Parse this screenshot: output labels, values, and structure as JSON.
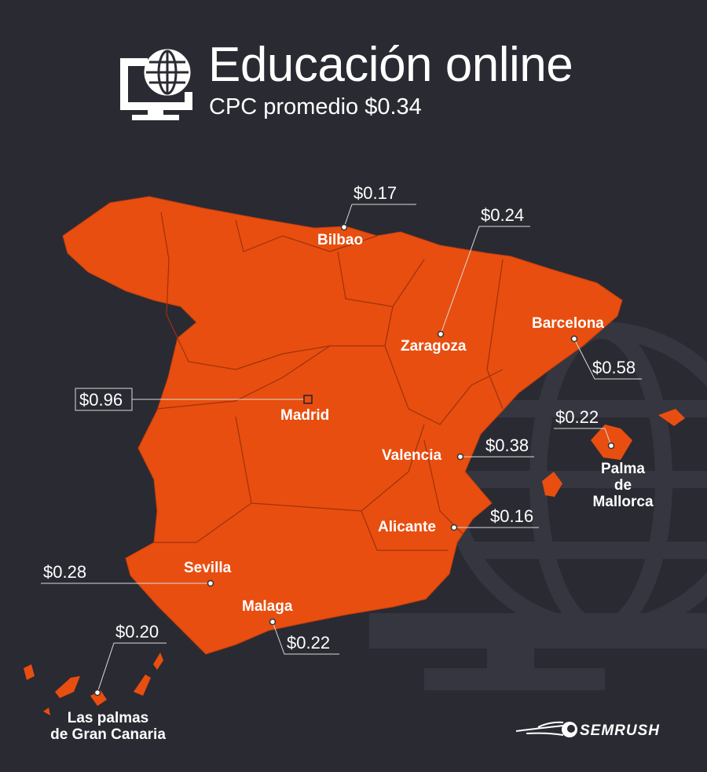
{
  "header": {
    "icon": "monitor-globe-icon",
    "title": "Educación online",
    "subtitle": "CPC promedio $0.34"
  },
  "colors": {
    "background": "#2a2a33",
    "map_fill": "#e84e10",
    "watermark": "#363640"
  },
  "cities": [
    {
      "name": "Bilbao",
      "cpc": "$0.17"
    },
    {
      "name": "Zaragoza",
      "cpc": "$0.24"
    },
    {
      "name": "Barcelona",
      "cpc": "$0.58"
    },
    {
      "name": "Madrid",
      "cpc": "$0.96"
    },
    {
      "name": "Valencia",
      "cpc": "$0.38"
    },
    {
      "name": "Palma\nde Mallorca",
      "cpc": "$0.22"
    },
    {
      "name": "Alicante",
      "cpc": "$0.16"
    },
    {
      "name": "Sevilla",
      "cpc": "$0.28"
    },
    {
      "name": "Malaga",
      "cpc": "$0.22"
    },
    {
      "name": "Las palmas\nde Gran Canaria",
      "cpc": "$0.20"
    }
  ],
  "brand": {
    "logo": "semrush-logo",
    "text": "SEMRUSH"
  }
}
